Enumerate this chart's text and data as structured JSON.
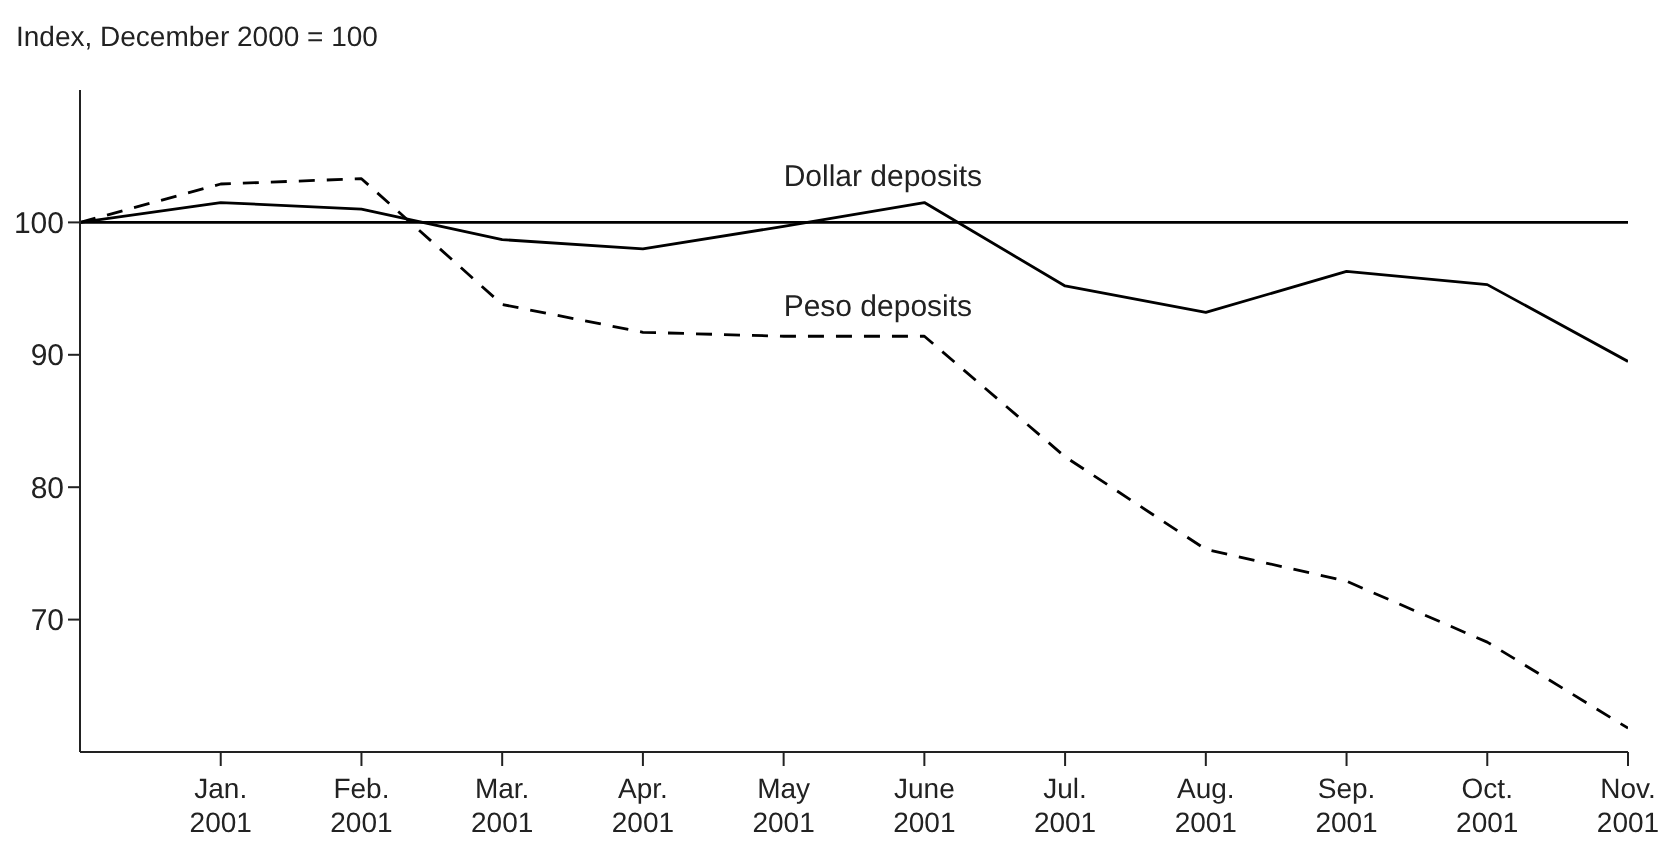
{
  "chart_data": {
    "type": "line",
    "title": "Index, December 2000 = 100",
    "categories": [
      null,
      "Jan.\n2001",
      "Feb.\n2001",
      "Mar.\n2001",
      "Apr.\n2001",
      "May\n2001",
      "June\n2001",
      "Jul.\n2001",
      "Aug.\n2001",
      "Sep.\n2001",
      "Oct.\n2001",
      "Nov.\n2001"
    ],
    "series": [
      {
        "name": "Dollar deposits",
        "color": "#000000",
        "line_style": "solid",
        "values": [
          100,
          101.5,
          101,
          98.7,
          98,
          99.7,
          101.5,
          95.2,
          93.2,
          96.3,
          95.3,
          89.5
        ]
      },
      {
        "name": "Peso deposits",
        "color": "#000000",
        "line_style": "dashed",
        "values": [
          100,
          102.9,
          103.3,
          93.8,
          91.7,
          91.4,
          91.4,
          82.3,
          75.3,
          72.9,
          68.3,
          61.8
        ]
      }
    ],
    "ylim": [
      60,
      110
    ],
    "yticks": [
      70,
      80,
      90,
      100
    ],
    "ref_lines": [
      {
        "axis": "y",
        "value": 100,
        "color": "#000000"
      }
    ],
    "grid": false,
    "legend": false,
    "marker": "none"
  }
}
